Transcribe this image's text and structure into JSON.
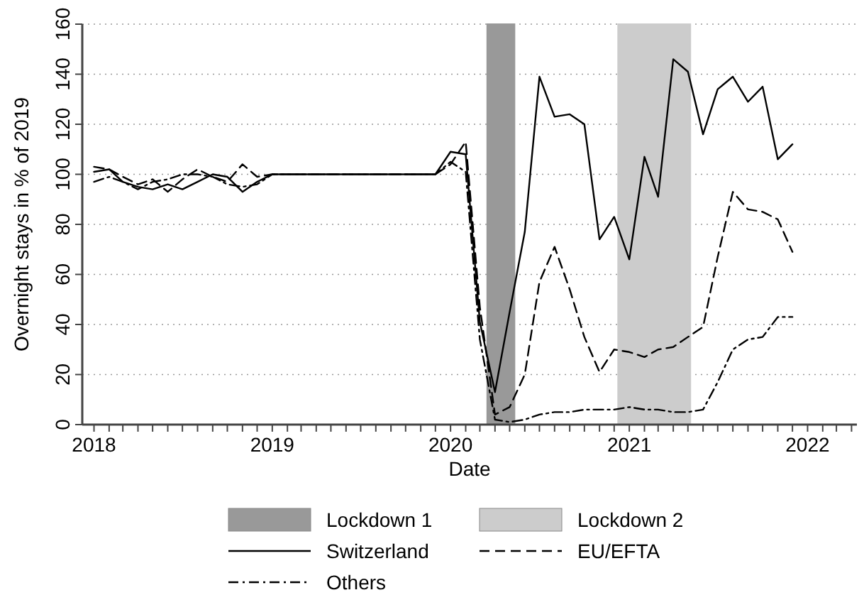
{
  "chart_data": {
    "type": "line",
    "xlabel": "Date",
    "ylabel": "Overnight stays in % of 2019",
    "x": [
      "2018-01",
      "2018-02",
      "2018-03",
      "2018-04",
      "2018-05",
      "2018-06",
      "2018-07",
      "2018-08",
      "2018-09",
      "2018-10",
      "2018-11",
      "2018-12",
      "2019-01",
      "2019-02",
      "2019-03",
      "2019-04",
      "2019-05",
      "2019-06",
      "2019-07",
      "2019-08",
      "2019-09",
      "2019-10",
      "2019-11",
      "2019-12",
      "2020-01",
      "2020-02",
      "2020-03",
      "2020-04",
      "2020-05",
      "2020-06",
      "2020-07",
      "2020-08",
      "2020-09",
      "2020-10",
      "2020-11",
      "2020-12",
      "2021-01",
      "2021-02",
      "2021-03",
      "2021-04",
      "2021-05",
      "2021-06",
      "2021-07",
      "2021-08",
      "2021-09",
      "2021-10",
      "2021-11",
      "2021-12"
    ],
    "series": [
      {
        "name": "Switzerland",
        "color": "#000000",
        "line_style": "solid",
        "values": [
          101,
          102,
          97,
          95,
          94,
          96,
          94,
          97,
          100,
          99,
          93,
          97,
          100,
          100,
          100,
          100,
          100,
          100,
          100,
          100,
          100,
          100,
          100,
          100,
          109,
          108,
          41,
          13,
          45,
          77,
          139,
          123,
          124,
          120,
          74,
          83,
          66,
          107,
          91,
          146,
          141,
          116,
          134,
          139,
          129,
          135,
          106,
          112
        ]
      },
      {
        "name": "EU/EFTA",
        "color": "#000000",
        "line_style": "dashed",
        "values": [
          103,
          102,
          99,
          96,
          98,
          93,
          98,
          102,
          99,
          97,
          104,
          99,
          100,
          100,
          100,
          100,
          100,
          100,
          100,
          100,
          100,
          100,
          100,
          100,
          104,
          113,
          47,
          4,
          7,
          20,
          57,
          71,
          54,
          35,
          21,
          30,
          29,
          27,
          30,
          31,
          35,
          39,
          67,
          93,
          86,
          85,
          82,
          69
        ]
      },
      {
        "name": "Others",
        "color": "#000000",
        "line_style": "dashdot",
        "values": [
          97,
          99,
          97,
          94,
          97,
          98,
          100,
          100,
          99,
          96,
          95,
          96,
          100,
          100,
          100,
          100,
          100,
          100,
          100,
          100,
          100,
          100,
          100,
          100,
          105,
          101,
          34,
          2,
          1,
          2,
          4,
          5,
          5,
          6,
          6,
          6,
          7,
          6,
          6,
          5,
          5,
          6,
          17,
          30,
          34,
          35,
          43,
          43
        ]
      }
    ],
    "bands": [
      {
        "axis": "x",
        "from": "2020-03-16",
        "to": "2020-05-11",
        "label": "Lockdown 1",
        "color": "#999999"
      },
      {
        "axis": "x",
        "from": "2020-12-09",
        "to": "2021-05-06",
        "label": "Lockdown 2",
        "color": "#cccccc"
      }
    ],
    "xlim": [
      "2017-12-08",
      "2022-04-12"
    ],
    "xticks": [
      {
        "value": "2018-01",
        "label": "2018"
      },
      {
        "value": "2018-02",
        "label": null
      },
      {
        "value": "2018-03",
        "label": null
      },
      {
        "value": "2018-04",
        "label": null
      },
      {
        "value": "2018-05",
        "label": null
      },
      {
        "value": "2018-06",
        "label": null
      },
      {
        "value": "2018-07",
        "label": null
      },
      {
        "value": "2018-08",
        "label": null
      },
      {
        "value": "2018-09",
        "label": null
      },
      {
        "value": "2018-10",
        "label": null
      },
      {
        "value": "2018-11",
        "label": null
      },
      {
        "value": "2018-12",
        "label": null
      },
      {
        "value": "2019-01",
        "label": "2019"
      },
      {
        "value": "2019-02",
        "label": null
      },
      {
        "value": "2019-03",
        "label": null
      },
      {
        "value": "2019-04",
        "label": null
      },
      {
        "value": "2019-05",
        "label": null
      },
      {
        "value": "2019-06",
        "label": null
      },
      {
        "value": "2019-07",
        "label": null
      },
      {
        "value": "2019-08",
        "label": null
      },
      {
        "value": "2019-09",
        "label": null
      },
      {
        "value": "2019-10",
        "label": null
      },
      {
        "value": "2019-11",
        "label": null
      },
      {
        "value": "2019-12",
        "label": null
      },
      {
        "value": "2020-01",
        "label": "2020"
      },
      {
        "value": "2020-02",
        "label": null
      },
      {
        "value": "2020-03",
        "label": null
      },
      {
        "value": "2020-04",
        "label": null
      },
      {
        "value": "2020-05",
        "label": null
      },
      {
        "value": "2020-06",
        "label": null
      },
      {
        "value": "2020-07",
        "label": null
      },
      {
        "value": "2020-08",
        "label": null
      },
      {
        "value": "2020-09",
        "label": null
      },
      {
        "value": "2020-10",
        "label": null
      },
      {
        "value": "2020-11",
        "label": null
      },
      {
        "value": "2020-12",
        "label": null
      },
      {
        "value": "2021-01",
        "label": "2021"
      },
      {
        "value": "2021-02",
        "label": null
      },
      {
        "value": "2021-03",
        "label": null
      },
      {
        "value": "2021-04",
        "label": null
      },
      {
        "value": "2021-05",
        "label": null
      },
      {
        "value": "2021-06",
        "label": null
      },
      {
        "value": "2021-07",
        "label": null
      },
      {
        "value": "2021-08",
        "label": null
      },
      {
        "value": "2021-09",
        "label": null
      },
      {
        "value": "2021-10",
        "label": null
      },
      {
        "value": "2021-11",
        "label": null
      },
      {
        "value": "2021-12",
        "label": null
      },
      {
        "value": "2022-01",
        "label": "2022"
      },
      {
        "value": "2022-02",
        "label": null
      },
      {
        "value": "2022-03",
        "label": null
      },
      {
        "value": "2022-04",
        "label": null
      }
    ],
    "ylim": [
      0,
      160
    ],
    "yticks": [
      0,
      20,
      40,
      60,
      80,
      100,
      120,
      140,
      160
    ],
    "grid": "y",
    "legend": "bottom",
    "marker": "none"
  }
}
